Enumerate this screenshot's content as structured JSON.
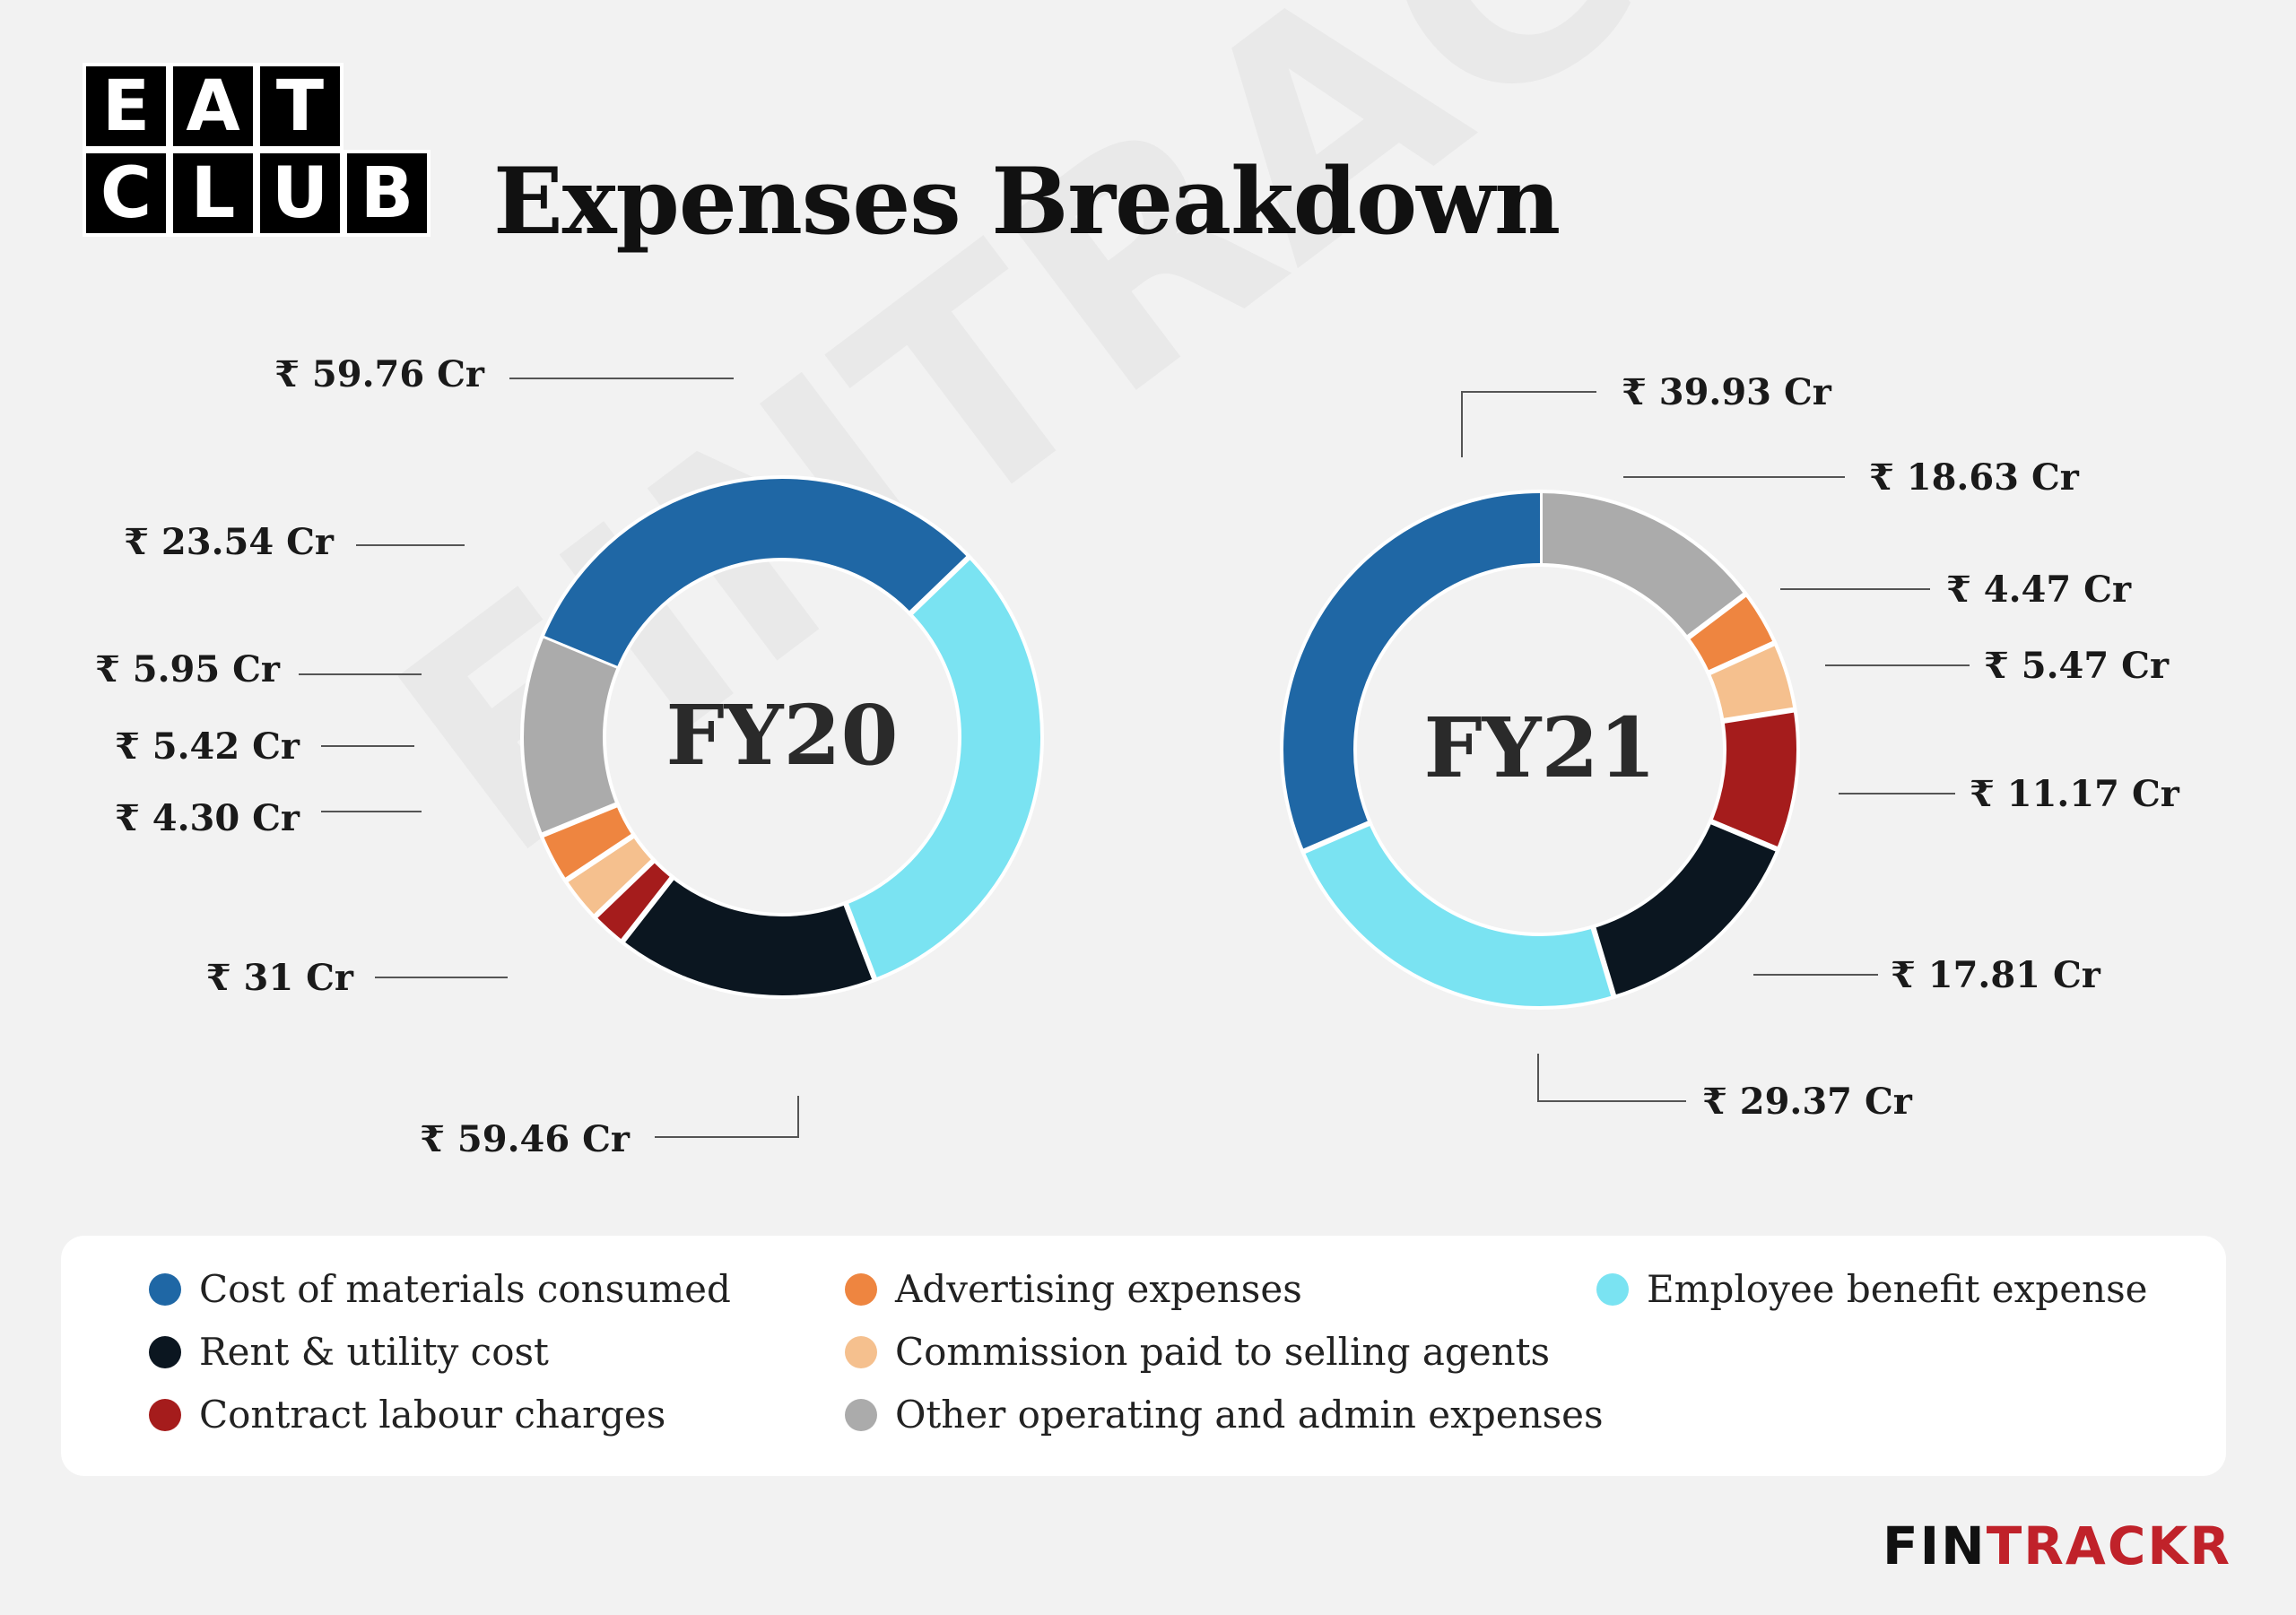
{
  "header": {
    "logo_rows": [
      [
        "E",
        "A",
        "T"
      ],
      [
        "C",
        "L",
        "U",
        "B"
      ]
    ],
    "title": "Expenses Breakdown"
  },
  "watermark": "FINTRACKR",
  "colors": {
    "cost_of_materials": "#1f67a5",
    "employee_benefit": "#7ae3f2",
    "rent_utility": "#0b1620",
    "contract_labour": "#a51c1c",
    "commission": "#f5c08e",
    "advertising": "#ee8540",
    "other_operating": "#ababab"
  },
  "chart_data": [
    {
      "type": "pie",
      "variant": "donut",
      "center_label": "FY20",
      "categories": [
        "Cost of materials consumed",
        "Employee benefit expense",
        "Rent & utility cost",
        "Contract labour charges",
        "Commission paid to selling agents",
        "Advertising expenses",
        "Other operating and admin expenses"
      ],
      "values": [
        59.76,
        59.46,
        31,
        4.3,
        5.42,
        5.95,
        23.54
      ],
      "value_labels": [
        "₹ 59.76 Cr",
        "₹ 59.46 Cr",
        "₹ 31 Cr",
        "₹ 4.30 Cr",
        "₹ 5.42 Cr",
        "₹ 5.95 Cr",
        "₹ 23.54 Cr"
      ],
      "unit": "Cr"
    },
    {
      "type": "pie",
      "variant": "donut",
      "center_label": "FY21",
      "categories": [
        "Other operating and admin expenses",
        "Advertising expenses",
        "Commission paid to selling agents",
        "Contract labour charges",
        "Rent & utility cost",
        "Employee benefit expense",
        "Cost of materials consumed"
      ],
      "values": [
        18.63,
        4.47,
        5.47,
        11.17,
        17.81,
        29.37,
        39.93
      ],
      "value_labels": [
        "₹ 18.63 Cr",
        "₹ 4.47 Cr",
        "₹ 5.47 Cr",
        "₹ 11.17 Cr",
        "₹ 17.81 Cr",
        "₹ 29.37 Cr",
        "₹ 39.93 Cr"
      ],
      "unit": "Cr"
    }
  ],
  "legend": [
    {
      "label": "Cost of materials consumed",
      "color": "#1f67a5"
    },
    {
      "label": "Rent & utility cost",
      "color": "#0b1620"
    },
    {
      "label": "Contract labour charges",
      "color": "#a51c1c"
    },
    {
      "label": "Advertising expenses",
      "color": "#ee8540"
    },
    {
      "label": "Commission paid to selling agents",
      "color": "#f5c08e"
    },
    {
      "label": "Other operating and admin expenses",
      "color": "#ababab"
    },
    {
      "label": "Employee benefit expense",
      "color": "#7ae3f2"
    }
  ],
  "footer": {
    "brand_part1": "FIN",
    "brand_part2": "TRACKR"
  }
}
